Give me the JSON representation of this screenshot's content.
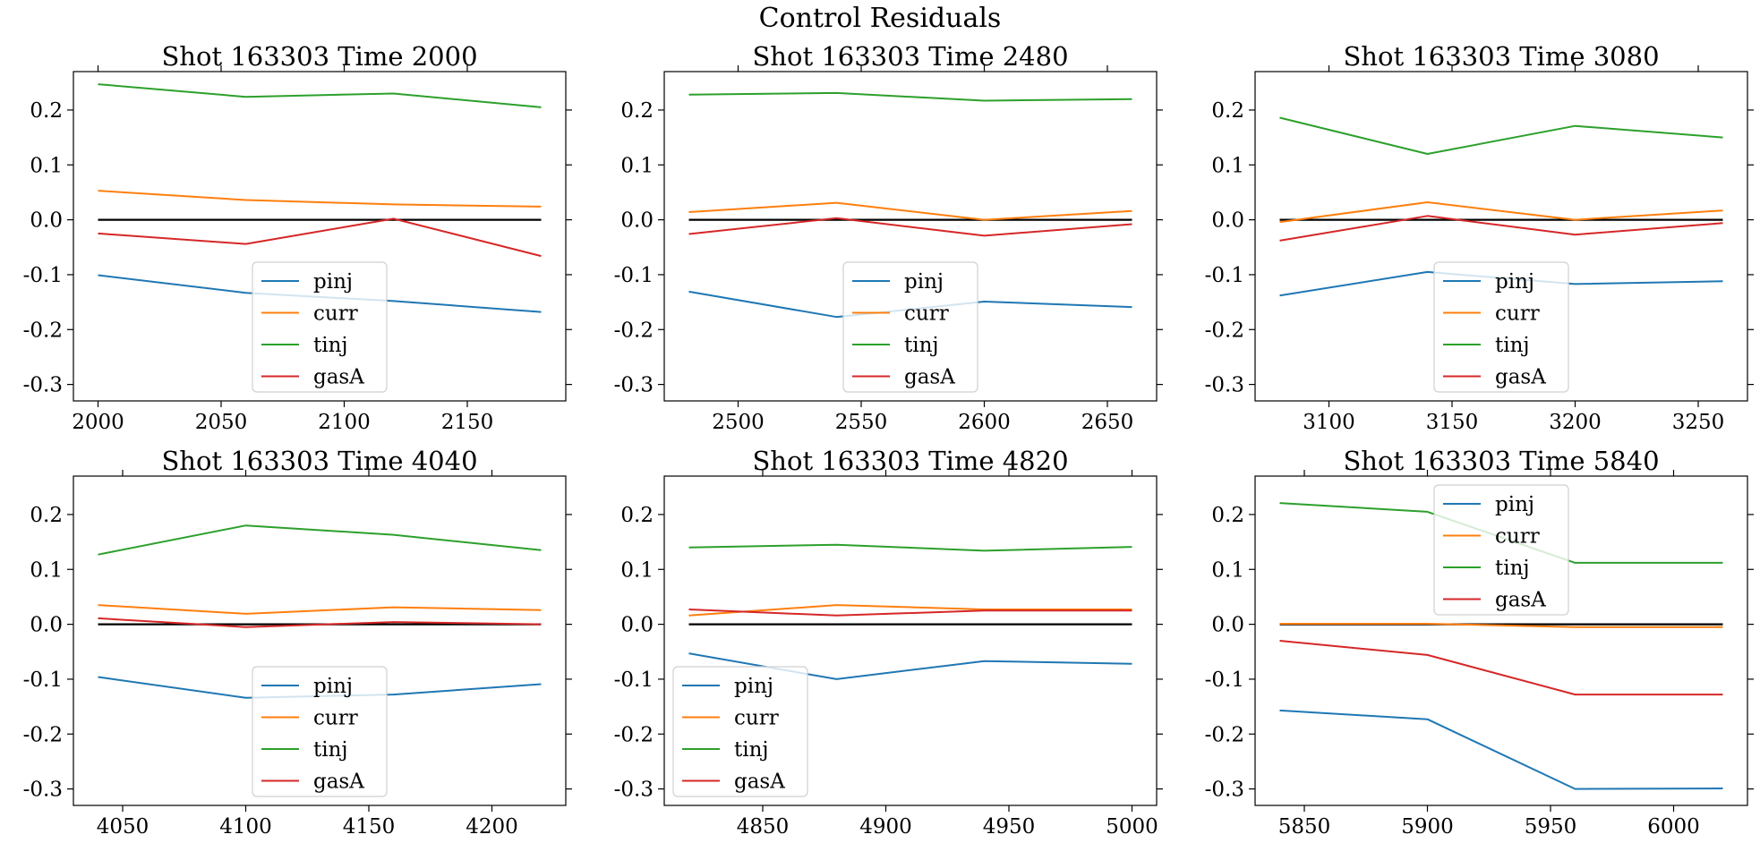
{
  "figure": {
    "suptitle": "Control Residuals"
  },
  "colors": {
    "pinj": "#1f77b4",
    "curr": "#ff7f0e",
    "tinj": "#2ca02c",
    "gasA": "#d62728",
    "zero_line": "#000000"
  },
  "chart_data": [
    {
      "type": "line",
      "title": "Shot 163303   Time 2000",
      "x": [
        2000,
        2060,
        2120,
        2180
      ],
      "xlim": [
        1990,
        2190
      ],
      "ylim": [
        -0.33,
        0.27
      ],
      "xticks": [
        2000,
        2050,
        2100,
        2150
      ],
      "yticks": [
        -0.3,
        -0.2,
        -0.1,
        0.0,
        0.1,
        0.2
      ],
      "legend_loc": "lower-center",
      "series": [
        {
          "name": "pinj",
          "values": [
            -0.101,
            -0.133,
            -0.148,
            -0.168
          ]
        },
        {
          "name": "curr",
          "values": [
            0.053,
            0.036,
            0.028,
            0.024
          ]
        },
        {
          "name": "tinj",
          "values": [
            0.247,
            0.224,
            0.23,
            0.205
          ]
        },
        {
          "name": "gasA",
          "values": [
            -0.025,
            -0.044,
            0.002,
            -0.066
          ]
        }
      ]
    },
    {
      "type": "line",
      "title": "Shot 163303   Time 2480",
      "x": [
        2480,
        2540,
        2600,
        2660
      ],
      "xlim": [
        2470,
        2670
      ],
      "ylim": [
        -0.33,
        0.27
      ],
      "xticks": [
        2500,
        2550,
        2600,
        2650
      ],
      "yticks": [
        -0.3,
        -0.2,
        -0.1,
        0.0,
        0.1,
        0.2
      ],
      "legend_loc": "lower-center",
      "series": [
        {
          "name": "pinj",
          "values": [
            -0.131,
            -0.177,
            -0.149,
            -0.159
          ]
        },
        {
          "name": "curr",
          "values": [
            0.014,
            0.031,
            0.0,
            0.016
          ]
        },
        {
          "name": "tinj",
          "values": [
            0.228,
            0.231,
            0.217,
            0.22
          ]
        },
        {
          "name": "gasA",
          "values": [
            -0.026,
            0.003,
            -0.029,
            -0.008
          ]
        }
      ]
    },
    {
      "type": "line",
      "title": "Shot 163303   Time 3080",
      "x": [
        3080,
        3140,
        3200,
        3260
      ],
      "xlim": [
        3070,
        3270
      ],
      "ylim": [
        -0.33,
        0.27
      ],
      "xticks": [
        3100,
        3150,
        3200,
        3250
      ],
      "yticks": [
        -0.3,
        -0.2,
        -0.1,
        0.0,
        0.1,
        0.2
      ],
      "legend_loc": "lower-center",
      "series": [
        {
          "name": "pinj",
          "values": [
            -0.138,
            -0.095,
            -0.117,
            -0.112
          ]
        },
        {
          "name": "curr",
          "values": [
            -0.004,
            0.032,
            0.0,
            0.017
          ]
        },
        {
          "name": "tinj",
          "values": [
            0.186,
            0.12,
            0.171,
            0.15
          ]
        },
        {
          "name": "gasA",
          "values": [
            -0.038,
            0.007,
            -0.027,
            -0.006
          ]
        }
      ]
    },
    {
      "type": "line",
      "title": "Shot 163303   Time 4040",
      "x": [
        4040,
        4100,
        4160,
        4220
      ],
      "xlim": [
        4030,
        4230
      ],
      "ylim": [
        -0.33,
        0.27
      ],
      "xticks": [
        4050,
        4100,
        4150,
        4200
      ],
      "yticks": [
        -0.3,
        -0.2,
        -0.1,
        0.0,
        0.1,
        0.2
      ],
      "legend_loc": "lower-center",
      "series": [
        {
          "name": "pinj",
          "values": [
            -0.096,
            -0.134,
            -0.128,
            -0.109
          ]
        },
        {
          "name": "curr",
          "values": [
            0.035,
            0.019,
            0.031,
            0.026
          ]
        },
        {
          "name": "tinj",
          "values": [
            0.127,
            0.18,
            0.163,
            0.135
          ]
        },
        {
          "name": "gasA",
          "values": [
            0.011,
            -0.005,
            0.004,
            0.0
          ]
        }
      ]
    },
    {
      "type": "line",
      "title": "Shot 163303   Time 4820",
      "x": [
        4820,
        4880,
        4940,
        5000
      ],
      "xlim": [
        4810,
        5010
      ],
      "ylim": [
        -0.33,
        0.27
      ],
      "xticks": [
        4850,
        4900,
        4950,
        5000
      ],
      "yticks": [
        -0.3,
        -0.2,
        -0.1,
        0.0,
        0.1,
        0.2
      ],
      "legend_loc": "lower-left",
      "series": [
        {
          "name": "pinj",
          "values": [
            -0.053,
            -0.1,
            -0.067,
            -0.072
          ]
        },
        {
          "name": "curr",
          "values": [
            0.016,
            0.035,
            0.027,
            0.027
          ]
        },
        {
          "name": "tinj",
          "values": [
            0.14,
            0.145,
            0.134,
            0.141
          ]
        },
        {
          "name": "gasA",
          "values": [
            0.027,
            0.016,
            0.025,
            0.025
          ]
        }
      ]
    },
    {
      "type": "line",
      "title": "Shot 163303   Time 5840",
      "x": [
        5840,
        5900,
        5960,
        6020
      ],
      "xlim": [
        5830,
        6030
      ],
      "ylim": [
        -0.33,
        0.27
      ],
      "xticks": [
        5850,
        5900,
        5950,
        6000
      ],
      "yticks": [
        -0.3,
        -0.2,
        -0.1,
        0.0,
        0.1,
        0.2
      ],
      "legend_loc": "upper-center",
      "series": [
        {
          "name": "pinj",
          "values": [
            -0.157,
            -0.173,
            -0.3,
            -0.299
          ]
        },
        {
          "name": "curr",
          "values": [
            0.001,
            0.001,
            -0.005,
            -0.005
          ]
        },
        {
          "name": "tinj",
          "values": [
            0.221,
            0.205,
            0.112,
            0.112
          ]
        },
        {
          "name": "gasA",
          "values": [
            -0.03,
            -0.056,
            -0.128,
            -0.128
          ]
        }
      ]
    }
  ]
}
